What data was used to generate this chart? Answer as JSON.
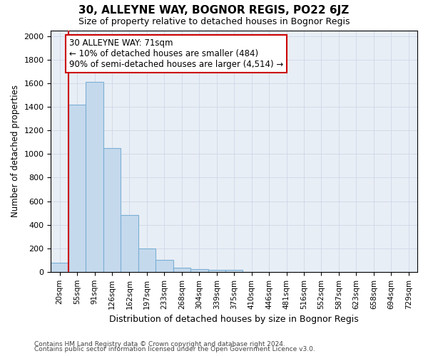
{
  "title1": "30, ALLEYNE WAY, BOGNOR REGIS, PO22 6JZ",
  "title2": "Size of property relative to detached houses in Bognor Regis",
  "xlabel": "Distribution of detached houses by size in Bognor Regis",
  "ylabel": "Number of detached properties",
  "categories": [
    "20sqm",
    "55sqm",
    "91sqm",
    "126sqm",
    "162sqm",
    "197sqm",
    "233sqm",
    "268sqm",
    "304sqm",
    "339sqm",
    "375sqm",
    "410sqm",
    "446sqm",
    "481sqm",
    "516sqm",
    "552sqm",
    "587sqm",
    "623sqm",
    "658sqm",
    "694sqm",
    "729sqm"
  ],
  "values": [
    80,
    1420,
    1615,
    1050,
    480,
    200,
    100,
    38,
    25,
    20,
    15,
    0,
    0,
    0,
    0,
    0,
    0,
    0,
    0,
    0,
    0
  ],
  "bar_color": "#c5d9ed",
  "bar_edge_color": "#7aafd4",
  "vline_color": "#cc0000",
  "vline_pos": 1,
  "annotation_text": "30 ALLEYNE WAY: 71sqm\n← 10% of detached houses are smaller (484)\n90% of semi-detached houses are larger (4,514) →",
  "annotation_box_facecolor": "white",
  "annotation_box_edgecolor": "#cc0000",
  "ylim": [
    0,
    2050
  ],
  "yticks": [
    0,
    200,
    400,
    600,
    800,
    1000,
    1200,
    1400,
    1600,
    1800,
    2000
  ],
  "grid_color": "#ced8e8",
  "background_color": "#e8eef5",
  "footer1": "Contains HM Land Registry data © Crown copyright and database right 2024.",
  "footer2": "Contains public sector information licensed under the Open Government Licence v3.0."
}
